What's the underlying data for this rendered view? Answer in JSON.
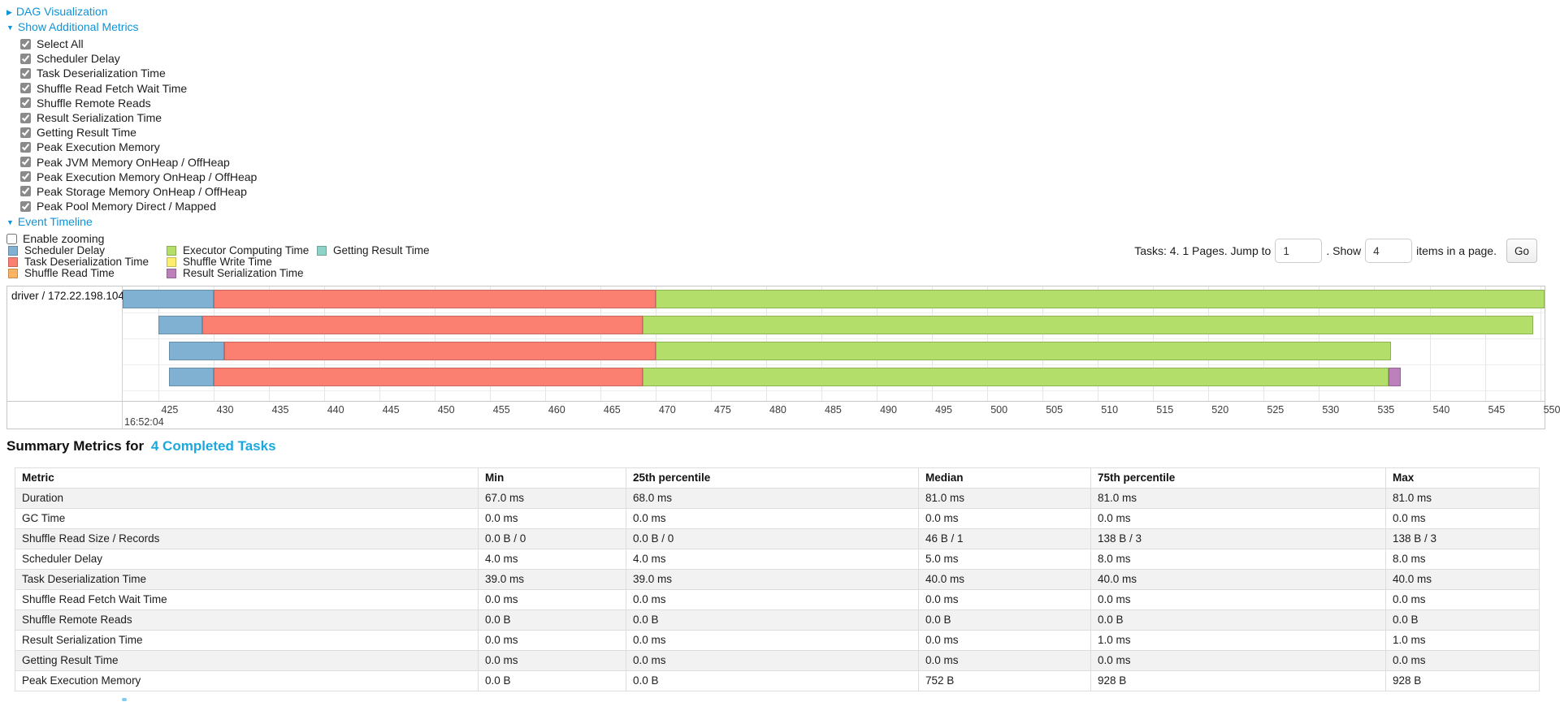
{
  "colors": {
    "link": "#0e93d8",
    "heading_link": "#1BA8DE",
    "table_stripe": "#f2f2f2"
  },
  "nav": {
    "dag": {
      "label": "DAG Visualization",
      "state": "collapsed",
      "arrow": "▶"
    },
    "metrics": {
      "label": "Show Additional Metrics",
      "state": "expanded",
      "arrow": "▼"
    },
    "event_timeline": {
      "label": "Event Timeline",
      "state": "expanded",
      "arrow": "▼"
    },
    "enable_zooming": {
      "label": "Enable zooming",
      "checked": false
    }
  },
  "metric_checkboxes": [
    {
      "label": "Select All",
      "checked": true
    },
    {
      "label": "Scheduler Delay",
      "checked": true
    },
    {
      "label": "Task Deserialization Time",
      "checked": true
    },
    {
      "label": "Shuffle Read Fetch Wait Time",
      "checked": true
    },
    {
      "label": "Shuffle Remote Reads",
      "checked": true
    },
    {
      "label": "Result Serialization Time",
      "checked": true
    },
    {
      "label": "Getting Result Time",
      "checked": true
    },
    {
      "label": "Peak Execution Memory",
      "checked": true
    },
    {
      "label": "Peak JVM Memory OnHeap / OffHeap",
      "checked": true
    },
    {
      "label": "Peak Execution Memory OnHeap / OffHeap",
      "checked": true
    },
    {
      "label": "Peak Storage Memory OnHeap / OffHeap",
      "checked": true
    },
    {
      "label": "Peak Pool Memory Direct / Mapped",
      "checked": true
    }
  ],
  "legend": {
    "columns": [
      [
        {
          "key": "scheduler_delay",
          "label": "Scheduler Delay"
        },
        {
          "key": "task_deserialization",
          "label": "Task Deserialization Time"
        },
        {
          "key": "shuffle_read",
          "label": "Shuffle Read Time"
        }
      ],
      [
        {
          "key": "executor_computing",
          "label": "Executor Computing Time"
        },
        {
          "key": "shuffle_write",
          "label": "Shuffle Write Time"
        },
        {
          "key": "result_serialization",
          "label": "Result Serialization Time"
        }
      ],
      [
        {
          "key": "getting_result",
          "label": "Getting Result Time"
        }
      ]
    ]
  },
  "pagination": {
    "tasks_text": "Tasks: 4. 1 Pages. Jump to",
    "jump_value": "1",
    "show_label": ". Show",
    "show_value": "4",
    "suffix_text": "items in a page.",
    "go_label": "Go"
  },
  "chart_data": {
    "type": "timeline",
    "group_label": "driver / 172.22.198.104",
    "axis": {
      "unit": "milliseconds within second 16:52:04",
      "window_start": 421.8,
      "window_end": 550.4,
      "tick_start": 425,
      "tick_end": 550,
      "tick_step": 5,
      "major_label": "16:52:04"
    },
    "palette": {
      "scheduler_delay": "#80B1D3",
      "task_deserialization": "#FB8072",
      "shuffle_read": "#FDB462",
      "executor_computing": "#B3DE69",
      "shuffle_write": "#FFED6F",
      "result_serialization": "#BC80BD",
      "getting_result": "#8DD3C7"
    },
    "tasks": [
      {
        "task": "task-1",
        "segments": [
          {
            "key": "scheduler_delay",
            "start": 421.8,
            "end": 430.0
          },
          {
            "key": "task_deserialization",
            "start": 430.0,
            "end": 470.0
          },
          {
            "key": "executor_computing",
            "start": 470.0,
            "end": 550.7
          }
        ]
      },
      {
        "task": "task-2",
        "segments": [
          {
            "key": "scheduler_delay",
            "start": 425.0,
            "end": 429.0
          },
          {
            "key": "task_deserialization",
            "start": 429.0,
            "end": 468.8
          },
          {
            "key": "executor_computing",
            "start": 468.8,
            "end": 549.4
          }
        ]
      },
      {
        "task": "task-3",
        "segments": [
          {
            "key": "scheduler_delay",
            "start": 426.0,
            "end": 431.0
          },
          {
            "key": "task_deserialization",
            "start": 431.0,
            "end": 470.0
          },
          {
            "key": "executor_computing",
            "start": 470.0,
            "end": 536.5
          }
        ]
      },
      {
        "task": "task-4",
        "segments": [
          {
            "key": "scheduler_delay",
            "start": 426.0,
            "end": 430.0
          },
          {
            "key": "task_deserialization",
            "start": 430.0,
            "end": 468.8
          },
          {
            "key": "executor_computing",
            "start": 468.8,
            "end": 536.3
          },
          {
            "key": "result_serialization",
            "start": 536.3,
            "end": 537.4
          }
        ]
      }
    ]
  },
  "summary": {
    "heading_prefix": "Summary Metrics for",
    "heading_link": "4 Completed Tasks",
    "columns": [
      "Metric",
      "Min",
      "25th percentile",
      "Median",
      "75th percentile",
      "Max"
    ],
    "rows": [
      {
        "metric": "Duration",
        "values": [
          "67.0 ms",
          "68.0 ms",
          "81.0 ms",
          "81.0 ms",
          "81.0 ms"
        ]
      },
      {
        "metric": "GC Time",
        "values": [
          "0.0 ms",
          "0.0 ms",
          "0.0 ms",
          "0.0 ms",
          "0.0 ms"
        ]
      },
      {
        "metric": "Shuffle Read Size / Records",
        "values": [
          "0.0 B / 0",
          "0.0 B / 0",
          "46 B / 1",
          "138 B / 3",
          "138 B / 3"
        ]
      },
      {
        "metric": "Scheduler Delay",
        "values": [
          "4.0 ms",
          "4.0 ms",
          "5.0 ms",
          "8.0 ms",
          "8.0 ms"
        ]
      },
      {
        "metric": "Task Deserialization Time",
        "values": [
          "39.0 ms",
          "39.0 ms",
          "40.0 ms",
          "40.0 ms",
          "40.0 ms"
        ]
      },
      {
        "metric": "Shuffle Read Fetch Wait Time",
        "values": [
          "0.0 ms",
          "0.0 ms",
          "0.0 ms",
          "0.0 ms",
          "0.0 ms"
        ]
      },
      {
        "metric": "Shuffle Remote Reads",
        "values": [
          "0.0 B",
          "0.0 B",
          "0.0 B",
          "0.0 B",
          "0.0 B"
        ]
      },
      {
        "metric": "Result Serialization Time",
        "values": [
          "0.0 ms",
          "0.0 ms",
          "0.0 ms",
          "1.0 ms",
          "1.0 ms"
        ]
      },
      {
        "metric": "Getting Result Time",
        "values": [
          "0.0 ms",
          "0.0 ms",
          "0.0 ms",
          "0.0 ms",
          "0.0 ms"
        ]
      },
      {
        "metric": "Peak Execution Memory",
        "values": [
          "0.0 B",
          "0.0 B",
          "752 B",
          "928 B",
          "928 B"
        ]
      }
    ]
  }
}
